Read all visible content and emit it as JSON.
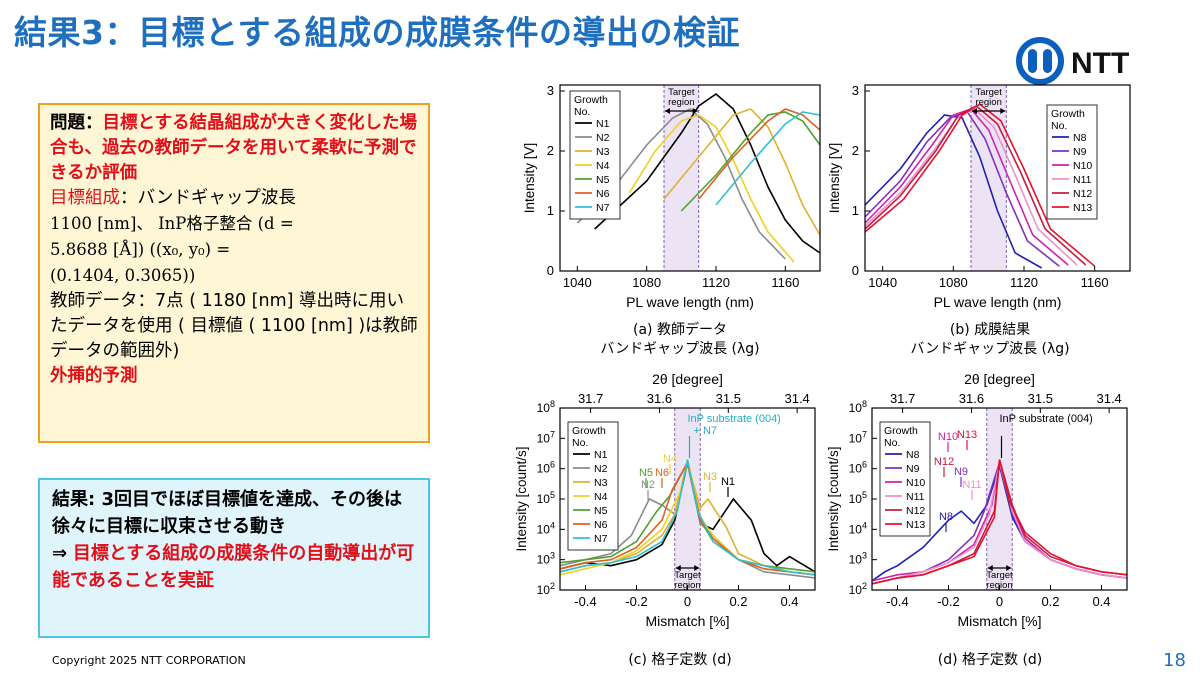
{
  "title": "結果3：目標とする組成の成膜条件の導出の検証",
  "logo": {
    "text": "NTT"
  },
  "box1": {
    "q_label": "問題：",
    "q_red": "目標とする結晶組成が大きく変化した場合も、過去の教師データを用いて柔軟に予測できるか評価",
    "target_label": "目標組成",
    "target_text": "：バンドギャップ波長",
    "target_line2": "1100 [nm]、 InP格子整合 (d =",
    "target_line3": "5.8688 [Å]) ((x₀, y₀) =",
    "target_line4": "(0.1404, 0.3065))",
    "teacher_text": "教師データ：7点 ( 1180 [nm] 導出時に用いたデータを使用 ( 目標値 ( 1100 [nm] )は教師データの範囲外)",
    "extrap": "外挿的予測"
  },
  "box2": {
    "result": "結果: 3回目でほぼ目標値を達成、その後は徐々に目標に収束させる動き",
    "arrow": "⇒",
    "conclusion": "目標とする組成の成膜条件の自動導出が可能であることを実証"
  },
  "copyright": "Copyright 2025 NTT CORPORATION",
  "page_number": "18",
  "captions": {
    "a1": "(a) 教師データ",
    "a2": "バンドギャップ波長 (λg)",
    "b1": "(b) 成膜結果",
    "b2": "バンドギャップ波長 (λg)",
    "c": "(c) 格子定数 (d)",
    "d": "(d) 格子定数 (d)"
  },
  "chart_data": [
    {
      "id": "a",
      "type": "line",
      "xlabel": "PL wave length (nm)",
      "ylabel": "Intensity [V]",
      "xlim": [
        1030,
        1180
      ],
      "ylim": [
        0,
        3.1
      ],
      "xticks": [
        1040,
        1080,
        1120,
        1160
      ],
      "yticks": [
        0,
        1,
        2,
        3
      ],
      "legend_title": "Growth No.",
      "target_region": [
        1090,
        1110
      ],
      "target_label": "Target region",
      "series": [
        {
          "name": "N1",
          "color": "#000000",
          "x": [
            1050,
            1080,
            1100,
            1110,
            1120,
            1130,
            1140,
            1150,
            1160,
            1170,
            1180
          ],
          "y": [
            0.7,
            1.5,
            2.3,
            2.75,
            2.95,
            2.7,
            2.1,
            1.4,
            0.85,
            0.5,
            0.3
          ]
        },
        {
          "name": "N2",
          "color": "#8c8c8c",
          "x": [
            1040,
            1060,
            1080,
            1095,
            1105,
            1115,
            1125,
            1135,
            1145,
            1160
          ],
          "y": [
            0.8,
            1.35,
            2.1,
            2.55,
            2.7,
            2.45,
            1.9,
            1.2,
            0.65,
            0.2
          ]
        },
        {
          "name": "N3",
          "color": "#e0b030",
          "x": [
            1090,
            1110,
            1130,
            1140,
            1150,
            1160,
            1170,
            1180
          ],
          "y": [
            1.2,
            1.9,
            2.6,
            2.7,
            2.4,
            1.8,
            1.1,
            0.6
          ]
        },
        {
          "name": "N4",
          "color": "#f0d020",
          "x": [
            1070,
            1085,
            1100,
            1110,
            1120,
            1130,
            1140,
            1150,
            1165
          ],
          "y": [
            1.3,
            2.0,
            2.5,
            2.6,
            2.4,
            1.85,
            1.2,
            0.65,
            0.15
          ]
        },
        {
          "name": "N5",
          "color": "#50a030",
          "x": [
            1100,
            1120,
            1140,
            1150,
            1160,
            1170,
            1180
          ],
          "y": [
            1.0,
            1.6,
            2.3,
            2.6,
            2.65,
            2.5,
            2.1
          ]
        },
        {
          "name": "N6",
          "color": "#e06020",
          "x": [
            1110,
            1130,
            1150,
            1160,
            1170,
            1180
          ],
          "y": [
            1.2,
            1.9,
            2.5,
            2.7,
            2.6,
            2.35
          ]
        },
        {
          "name": "N7",
          "color": "#30c0d0",
          "x": [
            1120,
            1140,
            1160,
            1170,
            1180
          ],
          "y": [
            1.1,
            1.8,
            2.45,
            2.65,
            2.6
          ]
        }
      ]
    },
    {
      "id": "b",
      "type": "line",
      "xlabel": "PL wave length (nm)",
      "ylabel": "Intensity [V]",
      "xlim": [
        1030,
        1180
      ],
      "ylim": [
        0,
        3.1
      ],
      "xticks": [
        1040,
        1080,
        1120,
        1160
      ],
      "yticks": [
        0,
        1,
        2,
        3
      ],
      "legend_title": "Growth No.",
      "target_region": [
        1090,
        1110
      ],
      "target_label": "Target region",
      "series": [
        {
          "name": "N8",
          "color": "#2020b0",
          "x": [
            1030,
            1050,
            1065,
            1075,
            1085,
            1095,
            1105,
            1115,
            1130
          ],
          "y": [
            1.1,
            1.7,
            2.3,
            2.6,
            2.55,
            1.9,
            1.0,
            0.3,
            0.05
          ]
        },
        {
          "name": "N9",
          "color": "#8030c0",
          "x": [
            1030,
            1050,
            1065,
            1078,
            1088,
            1098,
            1110,
            1122,
            1140
          ],
          "y": [
            0.9,
            1.5,
            2.15,
            2.55,
            2.65,
            2.2,
            1.3,
            0.5,
            0.08
          ]
        },
        {
          "name": "N10",
          "color": "#d020b0",
          "x": [
            1030,
            1050,
            1068,
            1080,
            1090,
            1100,
            1112,
            1125,
            1145
          ],
          "y": [
            0.8,
            1.4,
            2.1,
            2.6,
            2.7,
            2.35,
            1.5,
            0.6,
            0.1
          ]
        },
        {
          "name": "N11",
          "color": "#f090c8",
          "x": [
            1030,
            1050,
            1070,
            1082,
            1092,
            1103,
            1115,
            1128,
            1150
          ],
          "y": [
            0.75,
            1.3,
            2.05,
            2.55,
            2.7,
            2.4,
            1.6,
            0.7,
            0.1
          ]
        },
        {
          "name": "N12",
          "color": "#c02040",
          "x": [
            1030,
            1050,
            1070,
            1083,
            1093,
            1105,
            1118,
            1132,
            1155
          ],
          "y": [
            0.7,
            1.25,
            2.0,
            2.6,
            2.75,
            2.45,
            1.65,
            0.7,
            0.1
          ]
        },
        {
          "name": "N13",
          "color": "#e81030",
          "x": [
            1030,
            1052,
            1072,
            1085,
            1095,
            1107,
            1120,
            1135,
            1160
          ],
          "y": [
            0.65,
            1.2,
            2.0,
            2.6,
            2.78,
            2.5,
            1.7,
            0.7,
            0.08
          ]
        }
      ]
    },
    {
      "id": "c",
      "type": "line",
      "xlabel": "Mismatch [%]",
      "ylabel": "Intensity [count/s]",
      "top_xlabel": "2θ [degree]",
      "top_ticks": [
        "31.7",
        "31.6",
        "31.5",
        "31.4"
      ],
      "xlim": [
        -0.5,
        0.5
      ],
      "log_y": true,
      "ylim_exp": [
        2,
        8
      ],
      "xticks": [
        -0.4,
        -0.2,
        0,
        0.2,
        0.4
      ],
      "legend_title": "Growth No.",
      "target_region": [
        -0.05,
        0.05
      ],
      "target_label": "Target region",
      "annotation": "InP substrate (004) + N7",
      "peak_labels": [
        "N1",
        "N2",
        "N3",
        "N4",
        "N5",
        "N6"
      ],
      "series": [
        {
          "name": "N1",
          "color": "#000000",
          "x": [
            -0.5,
            -0.4,
            -0.3,
            -0.2,
            -0.1,
            -0.05,
            0,
            0.05,
            0.1,
            0.18,
            0.25,
            0.3,
            0.35,
            0.4,
            0.5
          ],
          "y": [
            2.7,
            2.9,
            2.8,
            3.0,
            3.5,
            4.3,
            6.2,
            4.2,
            4.0,
            5.0,
            4.3,
            3.2,
            2.8,
            3.1,
            2.6
          ]
        },
        {
          "name": "N2",
          "color": "#8c8c8c",
          "x": [
            -0.5,
            -0.4,
            -0.3,
            -0.22,
            -0.15,
            -0.1,
            -0.05,
            0,
            0.05,
            0.1,
            0.2,
            0.3,
            0.4,
            0.5
          ],
          "y": [
            2.8,
            3.0,
            3.2,
            3.8,
            5.0,
            4.8,
            4.5,
            6.2,
            4.2,
            3.8,
            3.0,
            2.6,
            2.5,
            2.4
          ]
        },
        {
          "name": "N3",
          "color": "#e0b030",
          "x": [
            -0.5,
            -0.4,
            -0.3,
            -0.2,
            -0.1,
            -0.05,
            0,
            0.05,
            0.08,
            0.15,
            0.2,
            0.3,
            0.4,
            0.5
          ],
          "y": [
            2.6,
            2.8,
            2.9,
            3.2,
            3.8,
            4.5,
            6.2,
            4.7,
            5.0,
            4.1,
            3.2,
            2.8,
            2.6,
            2.5
          ]
        },
        {
          "name": "N4",
          "color": "#f0d020",
          "x": [
            -0.5,
            -0.4,
            -0.3,
            -0.2,
            -0.1,
            -0.03,
            0,
            0.05,
            0.1,
            0.2,
            0.3,
            0.4,
            0.5
          ],
          "y": [
            2.5,
            2.7,
            2.9,
            3.3,
            4.0,
            5.2,
            6.3,
            4.4,
            3.8,
            3.0,
            2.7,
            2.6,
            2.5
          ]
        },
        {
          "name": "N5",
          "color": "#50a030",
          "x": [
            -0.5,
            -0.4,
            -0.3,
            -0.2,
            -0.12,
            -0.07,
            0,
            0.05,
            0.1,
            0.2,
            0.3,
            0.4,
            0.5
          ],
          "y": [
            2.9,
            3.0,
            3.1,
            3.6,
            4.6,
            5.1,
            6.2,
            4.3,
            3.6,
            3.0,
            2.8,
            2.7,
            2.6
          ]
        },
        {
          "name": "N6",
          "color": "#e06020",
          "x": [
            -0.5,
            -0.4,
            -0.3,
            -0.2,
            -0.1,
            -0.06,
            0,
            0.05,
            0.1,
            0.2,
            0.3,
            0.4,
            0.5
          ],
          "y": [
            2.7,
            2.9,
            3.0,
            3.4,
            4.3,
            5.3,
            6.2,
            4.3,
            3.7,
            3.0,
            2.7,
            2.6,
            2.5
          ]
        },
        {
          "name": "N7",
          "color": "#30c0d0",
          "x": [
            -0.5,
            -0.4,
            -0.3,
            -0.2,
            -0.1,
            -0.04,
            0,
            0.04,
            0.1,
            0.2,
            0.3,
            0.4,
            0.5
          ],
          "y": [
            2.6,
            2.8,
            2.9,
            3.1,
            3.6,
            4.6,
            6.3,
            4.6,
            3.6,
            3.0,
            2.8,
            2.6,
            2.5
          ]
        }
      ]
    },
    {
      "id": "d",
      "type": "line",
      "xlabel": "Mismatch [%]",
      "ylabel": "Intensity [count/s]",
      "top_xlabel": "2θ [degree]",
      "top_ticks": [
        "31.7",
        "31.6",
        "31.5",
        "31.4"
      ],
      "xlim": [
        -0.5,
        0.5
      ],
      "log_y": true,
      "ylim_exp": [
        2,
        8
      ],
      "xticks": [
        -0.4,
        -0.2,
        0,
        0.2,
        0.4
      ],
      "legend_title": "Growth No.",
      "target_region": [
        -0.05,
        0.05
      ],
      "target_label": "Target region",
      "annotation": "InP substrate (004)",
      "peak_labels": [
        "N8",
        "N9",
        "N10",
        "N11",
        "N12",
        "N13"
      ],
      "series": [
        {
          "name": "N8",
          "color": "#2020b0",
          "x": [
            -0.5,
            -0.45,
            -0.4,
            -0.3,
            -0.2,
            -0.15,
            -0.1,
            -0.05,
            0,
            0.05,
            0.1,
            0.2,
            0.3,
            0.4,
            0.5
          ],
          "y": [
            2.3,
            2.6,
            2.8,
            3.4,
            4.3,
            4.6,
            4.2,
            4.8,
            6.1,
            4.4,
            3.6,
            3.0,
            2.7,
            2.5,
            2.4
          ]
        },
        {
          "name": "N9",
          "color": "#8030c0",
          "x": [
            -0.5,
            -0.4,
            -0.3,
            -0.2,
            -0.1,
            -0.06,
            0,
            0.05,
            0.1,
            0.2,
            0.3,
            0.4,
            0.5
          ],
          "y": [
            2.2,
            2.4,
            2.6,
            3.0,
            3.8,
            4.6,
            6.2,
            4.5,
            3.7,
            3.0,
            2.7,
            2.5,
            2.4
          ]
        },
        {
          "name": "N10",
          "color": "#d020b0",
          "x": [
            -0.5,
            -0.4,
            -0.3,
            -0.2,
            -0.1,
            -0.03,
            0,
            0.05,
            0.1,
            0.2,
            0.3,
            0.4,
            0.5
          ],
          "y": [
            2.3,
            2.5,
            2.6,
            2.9,
            3.5,
            4.8,
            6.2,
            4.7,
            3.7,
            3.0,
            2.7,
            2.5,
            2.4
          ]
        },
        {
          "name": "N11",
          "color": "#f090c8",
          "x": [
            -0.5,
            -0.4,
            -0.3,
            -0.2,
            -0.1,
            -0.04,
            0,
            0.05,
            0.1,
            0.2,
            0.3,
            0.4,
            0.5
          ],
          "y": [
            2.2,
            2.4,
            2.6,
            2.9,
            3.4,
            4.5,
            6.2,
            4.6,
            3.6,
            3.0,
            2.7,
            2.5,
            2.4
          ]
        },
        {
          "name": "N12",
          "color": "#c02040",
          "x": [
            -0.5,
            -0.4,
            -0.3,
            -0.2,
            -0.1,
            -0.02,
            0,
            0.05,
            0.1,
            0.2,
            0.3,
            0.4,
            0.5
          ],
          "y": [
            2.2,
            2.4,
            2.5,
            2.8,
            3.2,
            4.6,
            6.3,
            4.8,
            3.8,
            3.1,
            2.8,
            2.6,
            2.5
          ]
        },
        {
          "name": "N13",
          "color": "#e81030",
          "x": [
            -0.5,
            -0.4,
            -0.3,
            -0.2,
            -0.1,
            -0.02,
            0,
            0.04,
            0.1,
            0.2,
            0.3,
            0.4,
            0.5
          ],
          "y": [
            2.2,
            2.4,
            2.5,
            2.8,
            3.1,
            4.4,
            6.3,
            4.9,
            3.9,
            3.2,
            2.8,
            2.6,
            2.5
          ]
        }
      ]
    }
  ]
}
